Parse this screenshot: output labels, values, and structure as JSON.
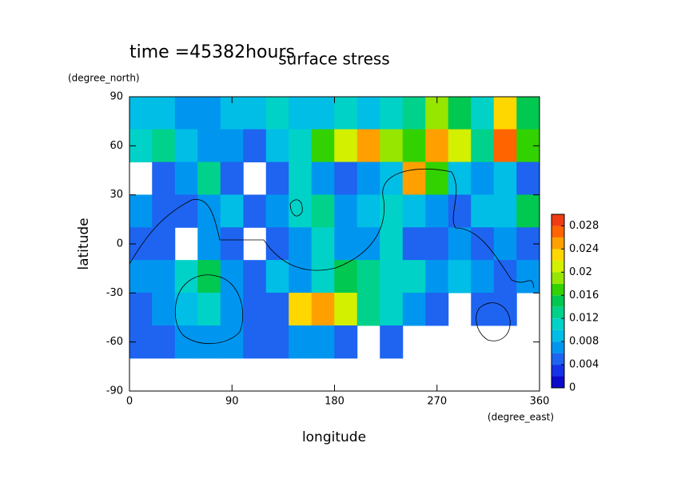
{
  "chart_data": {
    "type": "contour",
    "title": "surface stress",
    "subtitle": "time =45382hours",
    "x_label": "longitude",
    "x_unit": "(degree_east)",
    "y_label": "latitude",
    "y_unit": "(degree_north)",
    "x": [
      10,
      30,
      50,
      70,
      90,
      110,
      130,
      150,
      170,
      190,
      210,
      230,
      250,
      270,
      290,
      310,
      330,
      350
    ],
    "y": [
      80,
      60,
      40,
      20,
      0,
      -20,
      -40,
      -60,
      -80
    ],
    "z": [
      [
        0.008,
        0.008,
        0.006,
        0.006,
        0.008,
        0.008,
        0.01,
        0.008,
        0.008,
        0.01,
        0.008,
        0.01,
        0.012,
        0.018,
        0.014,
        0.01,
        0.022,
        0.014
      ],
      [
        0.01,
        0.012,
        0.008,
        0.006,
        0.006,
        0.004,
        0.008,
        0.01,
        0.016,
        0.02,
        0.024,
        0.018,
        0.016,
        0.024,
        0.02,
        0.012,
        0.026,
        0.016
      ],
      [
        null,
        0.004,
        0.006,
        0.012,
        0.004,
        null,
        0.004,
        0.01,
        0.006,
        0.004,
        0.006,
        0.008,
        0.024,
        0.016,
        0.008,
        0.006,
        0.008,
        0.004
      ],
      [
        0.006,
        0.004,
        0.004,
        0.006,
        0.008,
        0.004,
        0.006,
        0.01,
        0.012,
        0.006,
        0.008,
        0.01,
        0.008,
        0.006,
        0.004,
        0.008,
        0.008,
        0.014
      ],
      [
        0.004,
        0.004,
        null,
        0.006,
        0.004,
        null,
        0.004,
        0.006,
        0.01,
        0.006,
        0.006,
        0.01,
        0.004,
        0.004,
        0.006,
        0.004,
        0.006,
        0.004
      ],
      [
        0.006,
        0.006,
        0.01,
        0.014,
        0.006,
        0.004,
        0.008,
        0.006,
        0.01,
        0.014,
        0.012,
        0.01,
        0.01,
        0.006,
        0.008,
        0.006,
        0.004,
        0.006
      ],
      [
        0.004,
        0.006,
        0.008,
        0.01,
        0.006,
        0.004,
        0.004,
        0.022,
        0.024,
        0.02,
        0.012,
        0.01,
        0.006,
        0.004,
        null,
        0.004,
        0.004,
        null
      ],
      [
        0.004,
        0.004,
        0.006,
        0.006,
        0.006,
        0.004,
        0.004,
        0.006,
        0.006,
        0.004,
        null,
        0.004,
        null,
        null,
        null,
        null,
        null,
        null
      ],
      [
        null,
        null,
        null,
        null,
        null,
        null,
        null,
        null,
        null,
        null,
        null,
        null,
        null,
        null,
        null,
        null,
        null,
        null
      ]
    ],
    "xlim": [
      0,
      360
    ],
    "xticks": [
      0,
      90,
      180,
      270,
      360
    ],
    "ylim": [
      -90,
      90
    ],
    "yticks": [
      -90,
      -60,
      -30,
      0,
      30,
      60,
      90
    ],
    "clim": [
      0,
      0.03
    ],
    "cticks": [
      0,
      0.004,
      0.008,
      0.012,
      0.016,
      0.02,
      0.024,
      0.028
    ],
    "colors": [
      "#0a0ac8",
      "#1432e6",
      "#1e64f0",
      "#0096f0",
      "#00bee6",
      "#00d2c8",
      "#00d28c",
      "#00c850",
      "#32d200",
      "#96e600",
      "#d2f000",
      "#ffd700",
      "#ffa000",
      "#ff6400",
      "#f03c14"
    ]
  }
}
